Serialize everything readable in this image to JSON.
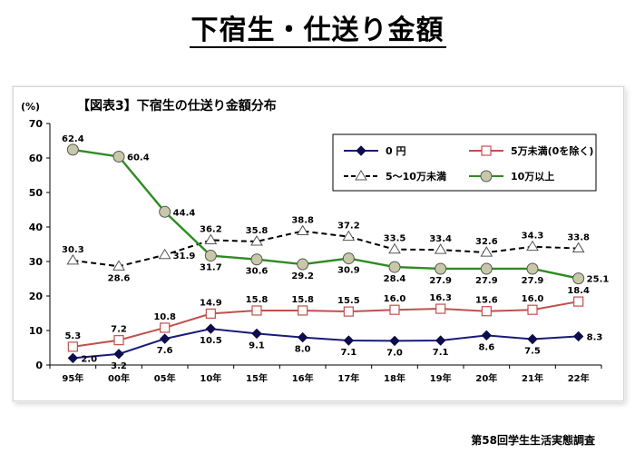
{
  "page_title": "下宿生・仕送り金額",
  "source": "第58回学生生活実態調査",
  "chart_data": {
    "type": "line",
    "title": "【図表3】下宿生の仕送り金額分布",
    "ylabel": "(%)",
    "xlabel": "",
    "ylim": [
      0,
      70
    ],
    "yticks": [
      0,
      10,
      20,
      30,
      40,
      50,
      60,
      70
    ],
    "categories": [
      "95年",
      "00年",
      "05年",
      "10年",
      "15年",
      "16年",
      "17年",
      "18年",
      "19年",
      "20年",
      "21年",
      "22年"
    ],
    "grid": false,
    "legend_position": "top-right",
    "series": [
      {
        "name": "0 円",
        "values": [
          2.0,
          3.2,
          7.6,
          10.5,
          9.1,
          8.0,
          7.1,
          7.0,
          7.1,
          8.6,
          7.5,
          8.3
        ],
        "labels": [
          "2.0",
          "3.2",
          "7.6",
          "10.5",
          "9.1",
          "8.0",
          "7.1",
          "7.0",
          "7.1",
          "8.6",
          "7.5",
          "8.3"
        ],
        "color": "#1a1a7a",
        "marker": "diamond",
        "dash": "solid",
        "label_pos": [
          "right",
          "below",
          "below",
          "below",
          "below",
          "below",
          "below",
          "below",
          "below",
          "below",
          "below",
          "right"
        ]
      },
      {
        "name": "5万未満(0を除く)",
        "values": [
          5.3,
          7.2,
          10.8,
          14.9,
          15.8,
          15.8,
          15.5,
          16.0,
          16.3,
          15.6,
          16.0,
          18.4
        ],
        "labels": [
          "5.3",
          "7.2",
          "10.8",
          "14.9",
          "15.8",
          "15.8",
          "15.5",
          "16.0",
          "16.3",
          "15.6",
          "16.0",
          "18.4"
        ],
        "color": "#c0504d",
        "marker": "square",
        "dash": "solid",
        "label_pos": [
          "above",
          "above",
          "above",
          "above",
          "above",
          "above",
          "above",
          "above",
          "above",
          "above",
          "above",
          "above"
        ]
      },
      {
        "name": "5～10万未満",
        "values": [
          30.3,
          28.6,
          31.9,
          36.2,
          35.8,
          38.8,
          37.2,
          33.5,
          33.4,
          32.6,
          34.3,
          33.8
        ],
        "labels": [
          "30.3",
          "28.6",
          "31.9",
          "36.2",
          "35.8",
          "38.8",
          "37.2",
          "33.5",
          "33.4",
          "32.6",
          "34.3",
          "33.8"
        ],
        "color": "#000000",
        "marker": "triangle",
        "dash": "dashed",
        "label_pos": [
          "above",
          "below",
          "right",
          "above",
          "above",
          "above",
          "above",
          "above",
          "above",
          "above",
          "above",
          "above"
        ]
      },
      {
        "name": "10万以上",
        "values": [
          62.4,
          60.4,
          44.4,
          31.7,
          30.6,
          29.2,
          30.9,
          28.4,
          27.9,
          27.9,
          27.9,
          25.1
        ],
        "labels": [
          "62.4",
          "60.4",
          "44.4",
          "31.7",
          "30.6",
          "29.2",
          "30.9",
          "28.4",
          "27.9",
          "27.9",
          "27.9",
          "25.1"
        ],
        "color": "#2e8b22",
        "marker": "circle",
        "dash": "solid",
        "label_pos": [
          "above",
          "right",
          "right",
          "below",
          "below",
          "below",
          "below",
          "below",
          "below",
          "below",
          "below",
          "right"
        ]
      }
    ]
  }
}
